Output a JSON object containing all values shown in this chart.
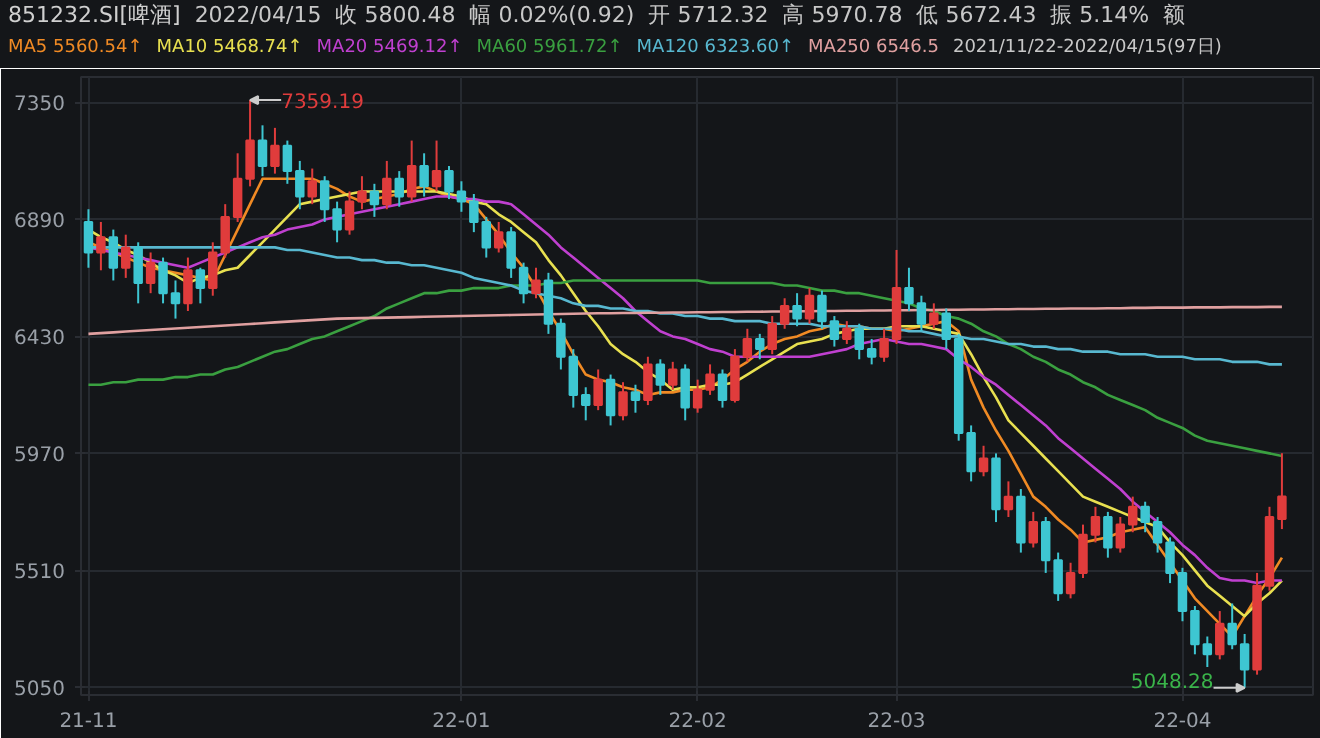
{
  "chart_data": {
    "type": "candlestick",
    "title": "851232.SI[啤酒]",
    "annotations": [
      "2022/04/15",
      "收 5800.48",
      "幅 0.02%(0.92)",
      "开 5712.32",
      "高 5970.78",
      "低 5672.43",
      "振 5.14%",
      "额",
      "2021/11/22-2022/04/15(97日)",
      "7359.19",
      "5048.28"
    ],
    "categories": [
      "21-11",
      null,
      null,
      null,
      null,
      null,
      null,
      null,
      null,
      null,
      null,
      null,
      null,
      null,
      null,
      null,
      null,
      null,
      null,
      null,
      null,
      null,
      null,
      null,
      null,
      null,
      null,
      null,
      null,
      null,
      "22-01",
      null,
      null,
      null,
      null,
      null,
      null,
      null,
      null,
      null,
      null,
      null,
      null,
      null,
      null,
      null,
      null,
      null,
      null,
      "22-02",
      null,
      null,
      null,
      null,
      null,
      null,
      null,
      null,
      null,
      null,
      null,
      null,
      null,
      null,
      null,
      "22-03",
      null,
      null,
      null,
      null,
      null,
      null,
      null,
      null,
      null,
      null,
      null,
      null,
      null,
      null,
      null,
      null,
      null,
      null,
      null,
      null,
      null,
      null,
      "22-04",
      null,
      null,
      null,
      null,
      null,
      null,
      null,
      null
    ],
    "ohlc": [
      [
        6880,
        6930,
        6700,
        6760
      ],
      [
        6760,
        6880,
        6690,
        6820
      ],
      [
        6820,
        6850,
        6650,
        6700
      ],
      [
        6700,
        6830,
        6660,
        6780
      ],
      [
        6780,
        6800,
        6560,
        6640
      ],
      [
        6640,
        6760,
        6600,
        6720
      ],
      [
        6720,
        6740,
        6560,
        6600
      ],
      [
        6600,
        6650,
        6500,
        6560
      ],
      [
        6560,
        6740,
        6530,
        6690
      ],
      [
        6690,
        6700,
        6560,
        6620
      ],
      [
        6620,
        6800,
        6590,
        6760
      ],
      [
        6760,
        6950,
        6740,
        6900
      ],
      [
        6900,
        7150,
        6880,
        7050
      ],
      [
        7050,
        7359.19,
        7020,
        7200
      ],
      [
        7200,
        7260,
        7060,
        7100
      ],
      [
        7100,
        7250,
        7070,
        7180
      ],
      [
        7180,
        7200,
        7030,
        7080
      ],
      [
        7080,
        7120,
        6930,
        6980
      ],
      [
        6980,
        7090,
        6950,
        7040
      ],
      [
        7040,
        7060,
        6880,
        6930
      ],
      [
        6930,
        6960,
        6800,
        6850
      ],
      [
        6850,
        7000,
        6830,
        6960
      ],
      [
        6960,
        7060,
        6930,
        7000
      ],
      [
        7000,
        7030,
        6900,
        6950
      ],
      [
        6950,
        7120,
        6930,
        7050
      ],
      [
        7050,
        7080,
        6940,
        6980
      ],
      [
        6980,
        7200,
        6960,
        7100
      ],
      [
        7100,
        7150,
        6980,
        7020
      ],
      [
        7020,
        7200,
        7000,
        7080
      ],
      [
        7080,
        7100,
        6970,
        7000
      ],
      [
        7000,
        7040,
        6920,
        6960
      ],
      [
        6960,
        6990,
        6840,
        6880
      ],
      [
        6880,
        6900,
        6740,
        6780
      ],
      [
        6780,
        6880,
        6760,
        6840
      ],
      [
        6840,
        6860,
        6660,
        6700
      ],
      [
        6700,
        6720,
        6560,
        6600
      ],
      [
        6600,
        6700,
        6580,
        6650
      ],
      [
        6650,
        6680,
        6440,
        6480
      ],
      [
        6480,
        6500,
        6300,
        6350
      ],
      [
        6350,
        6380,
        6150,
        6200
      ],
      [
        6200,
        6230,
        6100,
        6160
      ],
      [
        6160,
        6300,
        6140,
        6260
      ],
      [
        6260,
        6280,
        6080,
        6120
      ],
      [
        6120,
        6250,
        6100,
        6210
      ],
      [
        6210,
        6240,
        6130,
        6180
      ],
      [
        6180,
        6350,
        6160,
        6320
      ],
      [
        6320,
        6340,
        6200,
        6240
      ],
      [
        6240,
        6330,
        6220,
        6300
      ],
      [
        6300,
        6320,
        6100,
        6150
      ],
      [
        6150,
        6260,
        6130,
        6220
      ],
      [
        6220,
        6320,
        6200,
        6280
      ],
      [
        6280,
        6300,
        6150,
        6180
      ],
      [
        6180,
        6380,
        6170,
        6350
      ],
      [
        6350,
        6460,
        6330,
        6420
      ],
      [
        6420,
        6440,
        6340,
        6380
      ],
      [
        6380,
        6510,
        6360,
        6480
      ],
      [
        6480,
        6580,
        6460,
        6550
      ],
      [
        6550,
        6600,
        6470,
        6500
      ],
      [
        6500,
        6620,
        6480,
        6590
      ],
      [
        6590,
        6610,
        6460,
        6490
      ],
      [
        6490,
        6510,
        6390,
        6420
      ],
      [
        6420,
        6490,
        6400,
        6460
      ],
      [
        6460,
        6480,
        6340,
        6380
      ],
      [
        6380,
        6420,
        6320,
        6350
      ],
      [
        6350,
        6460,
        6330,
        6420
      ],
      [
        6420,
        6770,
        6400,
        6620
      ],
      [
        6620,
        6700,
        6530,
        6560
      ],
      [
        6560,
        6590,
        6450,
        6480
      ],
      [
        6480,
        6560,
        6460,
        6520
      ],
      [
        6520,
        6540,
        6380,
        6420
      ],
      [
        6420,
        6440,
        6020,
        6050
      ],
      [
        6050,
        6080,
        5860,
        5900
      ],
      [
        5900,
        6000,
        5880,
        5950
      ],
      [
        5950,
        5970,
        5700,
        5750
      ],
      [
        5750,
        5860,
        5720,
        5800
      ],
      [
        5800,
        5830,
        5580,
        5620
      ],
      [
        5620,
        5740,
        5600,
        5700
      ],
      [
        5700,
        5720,
        5500,
        5550
      ],
      [
        5550,
        5580,
        5390,
        5420
      ],
      [
        5420,
        5540,
        5400,
        5500
      ],
      [
        5500,
        5690,
        5480,
        5650
      ],
      [
        5650,
        5760,
        5620,
        5720
      ],
      [
        5720,
        5740,
        5560,
        5600
      ],
      [
        5600,
        5720,
        5580,
        5690
      ],
      [
        5690,
        5800,
        5660,
        5760
      ],
      [
        5760,
        5780,
        5660,
        5700
      ],
      [
        5700,
        5720,
        5580,
        5620
      ],
      [
        5620,
        5640,
        5460,
        5500
      ],
      [
        5500,
        5520,
        5310,
        5350
      ],
      [
        5350,
        5370,
        5180,
        5220
      ],
      [
        5220,
        5250,
        5130,
        5180
      ],
      [
        5180,
        5350,
        5160,
        5300
      ],
      [
        5300,
        5380,
        5200,
        5220
      ],
      [
        5220,
        5260,
        5048.28,
        5120
      ],
      [
        5120,
        5500,
        5100,
        5450
      ],
      [
        5450,
        5760,
        5430,
        5720
      ],
      [
        5712.32,
        5970.78,
        5672.43,
        5800.48
      ]
    ],
    "colors": [
      "#3ec6d2",
      "#e03c3c",
      "#3ec6d2",
      "#e03c3c",
      "#3ec6d2",
      "#e03c3c",
      "#3ec6d2",
      "#3ec6d2",
      "#e03c3c",
      "#3ec6d2",
      "#e03c3c",
      "#e03c3c",
      "#e03c3c",
      "#e03c3c",
      "#3ec6d2",
      "#e03c3c",
      "#3ec6d2",
      "#3ec6d2",
      "#e03c3c",
      "#3ec6d2",
      "#3ec6d2",
      "#e03c3c",
      "#e03c3c",
      "#3ec6d2",
      "#e03c3c",
      "#3ec6d2",
      "#e03c3c",
      "#3ec6d2",
      "#e03c3c",
      "#3ec6d2",
      "#3ec6d2",
      "#3ec6d2",
      "#3ec6d2",
      "#e03c3c",
      "#3ec6d2",
      "#3ec6d2",
      "#e03c3c",
      "#3ec6d2",
      "#3ec6d2",
      "#3ec6d2",
      "#3ec6d2",
      "#e03c3c",
      "#3ec6d2",
      "#e03c3c",
      "#3ec6d2",
      "#e03c3c",
      "#3ec6d2",
      "#e03c3c",
      "#3ec6d2",
      "#e03c3c",
      "#e03c3c",
      "#3ec6d2",
      "#e03c3c",
      "#e03c3c",
      "#3ec6d2",
      "#e03c3c",
      "#e03c3c",
      "#3ec6d2",
      "#e03c3c",
      "#3ec6d2",
      "#3ec6d2",
      "#e03c3c",
      "#3ec6d2",
      "#3ec6d2",
      "#e03c3c",
      "#e03c3c",
      "#3ec6d2",
      "#3ec6d2",
      "#e03c3c",
      "#3ec6d2",
      "#3ec6d2",
      "#3ec6d2",
      "#e03c3c",
      "#3ec6d2",
      "#e03c3c",
      "#3ec6d2",
      "#e03c3c",
      "#3ec6d2",
      "#3ec6d2",
      "#e03c3c",
      "#e03c3c",
      "#e03c3c",
      "#3ec6d2",
      "#e03c3c",
      "#e03c3c",
      "#3ec6d2",
      "#3ec6d2",
      "#3ec6d2",
      "#3ec6d2",
      "#3ec6d2",
      "#3ec6d2",
      "#e03c3c",
      "#3ec6d2",
      "#3ec6d2",
      "#e03c3c",
      "#e03c3c",
      "#e03c3c"
    ],
    "series": [
      {
        "type": "line",
        "name": "MA5 5560.54↑",
        "color": "#f08a24",
        "values": [
          6800,
          6780,
          6760,
          6740,
          6720,
          6700,
          6690,
          6680,
          6670,
          6660,
          6650,
          6750,
          6850,
          6950,
          7050,
          7050,
          7050,
          7050,
          7050,
          7030,
          7010,
          6980,
          6960,
          6970,
          6980,
          6990,
          7010,
          7020,
          7000,
          6980,
          6970,
          6950,
          6890,
          6830,
          6760,
          6700,
          6620,
          6530,
          6450,
          6360,
          6280,
          6260,
          6250,
          6230,
          6220,
          6200,
          6210,
          6210,
          6220,
          6220,
          6230,
          6260,
          6300,
          6330,
          6370,
          6400,
          6420,
          6430,
          6450,
          6460,
          6480,
          6470,
          6470,
          6460,
          6460,
          6450,
          6460,
          6470,
          6480,
          6490,
          6450,
          6260,
          6150,
          6060,
          5980,
          5890,
          5800,
          5760,
          5710,
          5670,
          5620,
          5630,
          5640,
          5660,
          5670,
          5680,
          5610,
          5540,
          5470,
          5400,
          5350,
          5300,
          5250,
          5330,
          5410,
          5480,
          5560
        ]
      },
      {
        "type": "line",
        "name": "MA10 5468.74↑",
        "color": "#e8e050",
        "values": [
          6850,
          6820,
          6800,
          6770,
          6750,
          6720,
          6690,
          6670,
          6640,
          6660,
          6670,
          6690,
          6700,
          6750,
          6800,
          6850,
          6900,
          6950,
          6960,
          6970,
          6980,
          6990,
          7000,
          7000,
          7000,
          7000,
          7000,
          7000,
          7000,
          6990,
          6980,
          6960,
          6950,
          6910,
          6880,
          6840,
          6800,
          6730,
          6670,
          6600,
          6530,
          6470,
          6400,
          6360,
          6330,
          6290,
          6260,
          6220,
          6230,
          6230,
          6240,
          6240,
          6250,
          6280,
          6310,
          6340,
          6370,
          6400,
          6410,
          6420,
          6440,
          6450,
          6460,
          6460,
          6460,
          6470,
          6470,
          6470,
          6460,
          6450,
          6440,
          6360,
          6270,
          6190,
          6100,
          6050,
          6000,
          5950,
          5900,
          5850,
          5800,
          5780,
          5760,
          5740,
          5720,
          5700,
          5680,
          5620,
          5570,
          5510,
          5450,
          5410,
          5370,
          5330,
          5380,
          5420,
          5470
        ]
      },
      {
        "type": "line",
        "name": "MA20 5469.12↑",
        "color": "#c040d0",
        "values": [
          6780,
          6770,
          6760,
          6750,
          6740,
          6730,
          6720,
          6710,
          6700,
          6720,
          6740,
          6760,
          6780,
          6800,
          6820,
          6830,
          6850,
          6860,
          6870,
          6890,
          6900,
          6910,
          6920,
          6930,
          6940,
          6950,
          6960,
          6970,
          6980,
          6980,
          6970,
          6970,
          6960,
          6960,
          6950,
          6910,
          6870,
          6830,
          6780,
          6740,
          6700,
          6660,
          6620,
          6580,
          6530,
          6490,
          6450,
          6430,
          6420,
          6400,
          6380,
          6370,
          6350,
          6350,
          6350,
          6350,
          6350,
          6350,
          6350,
          6360,
          6370,
          6380,
          6400,
          6410,
          6420,
          6410,
          6400,
          6400,
          6390,
          6380,
          6340,
          6310,
          6270,
          6240,
          6200,
          6160,
          6120,
          6080,
          6030,
          5990,
          5950,
          5910,
          5870,
          5830,
          5780,
          5740,
          5700,
          5660,
          5610,
          5570,
          5520,
          5480,
          5470,
          5470,
          5460,
          5470,
          5470
        ]
      },
      {
        "type": "line",
        "name": "MA60 5961.72↑",
        "color": "#3aa040",
        "values": [
          6240,
          6240,
          6250,
          6250,
          6260,
          6260,
          6260,
          6270,
          6270,
          6280,
          6280,
          6300,
          6310,
          6330,
          6350,
          6370,
          6380,
          6400,
          6420,
          6430,
          6450,
          6470,
          6490,
          6510,
          6540,
          6560,
          6580,
          6600,
          6600,
          6610,
          6610,
          6620,
          6620,
          6620,
          6630,
          6630,
          6630,
          6640,
          6640,
          6650,
          6650,
          6650,
          6650,
          6650,
          6650,
          6650,
          6650,
          6650,
          6650,
          6650,
          6640,
          6640,
          6640,
          6640,
          6640,
          6640,
          6630,
          6630,
          6620,
          6610,
          6610,
          6600,
          6600,
          6590,
          6580,
          6570,
          6560,
          6540,
          6530,
          6510,
          6500,
          6480,
          6450,
          6430,
          6400,
          6380,
          6350,
          6330,
          6300,
          6280,
          6250,
          6230,
          6200,
          6180,
          6160,
          6140,
          6110,
          6090,
          6070,
          6040,
          6020,
          6010,
          6000,
          5990,
          5980,
          5970,
          5960
        ]
      },
      {
        "type": "line",
        "name": "MA120 6323.60↑",
        "color": "#58b8d0",
        "values": [
          6780,
          6780,
          6780,
          6780,
          6780,
          6780,
          6780,
          6780,
          6780,
          6780,
          6780,
          6780,
          6780,
          6780,
          6780,
          6780,
          6770,
          6770,
          6760,
          6750,
          6740,
          6740,
          6730,
          6730,
          6720,
          6720,
          6710,
          6710,
          6700,
          6690,
          6680,
          6660,
          6650,
          6640,
          6630,
          6610,
          6600,
          6590,
          6580,
          6560,
          6550,
          6550,
          6540,
          6540,
          6530,
          6530,
          6520,
          6520,
          6510,
          6510,
          6500,
          6500,
          6490,
          6490,
          6490,
          6480,
          6480,
          6480,
          6480,
          6470,
          6470,
          6470,
          6470,
          6460,
          6460,
          6460,
          6450,
          6450,
          6440,
          6430,
          6430,
          6420,
          6420,
          6410,
          6400,
          6400,
          6390,
          6390,
          6380,
          6380,
          6370,
          6370,
          6370,
          6360,
          6360,
          6360,
          6350,
          6350,
          6350,
          6340,
          6340,
          6340,
          6330,
          6330,
          6330,
          6320,
          6320
        ]
      },
      {
        "type": "line",
        "name": "MA250 6546.5",
        "color": "#e0a0a0",
        "values": [
          6440,
          6443,
          6446,
          6449,
          6452,
          6455,
          6458,
          6461,
          6464,
          6467,
          6470,
          6473,
          6476,
          6479,
          6482,
          6485,
          6488,
          6491,
          6494,
          6497,
          6500,
          6501,
          6502,
          6503,
          6504,
          6505,
          6506,
          6507,
          6508,
          6509,
          6510,
          6511,
          6512,
          6513,
          6514,
          6515,
          6516,
          6517,
          6518,
          6519,
          6520,
          6521,
          6521,
          6522,
          6522,
          6523,
          6523,
          6524,
          6524,
          6525,
          6525,
          6526,
          6526,
          6527,
          6527,
          6528,
          6528,
          6529,
          6529,
          6530,
          6530,
          6531,
          6531,
          6532,
          6532,
          6533,
          6533,
          6534,
          6534,
          6535,
          6535,
          6536,
          6536,
          6537,
          6537,
          6538,
          6538,
          6539,
          6539,
          6540,
          6540,
          6540,
          6541,
          6541,
          6542,
          6542,
          6543,
          6543,
          6543,
          6544,
          6544,
          6544,
          6545,
          6545,
          6545,
          6546,
          6546
        ]
      }
    ],
    "legend": "top left",
    "grid": true,
    "ylim": [
      5020,
      7450
    ],
    "yticks": [
      5050,
      5510,
      5970,
      6430,
      6890,
      7350
    ]
  }
}
